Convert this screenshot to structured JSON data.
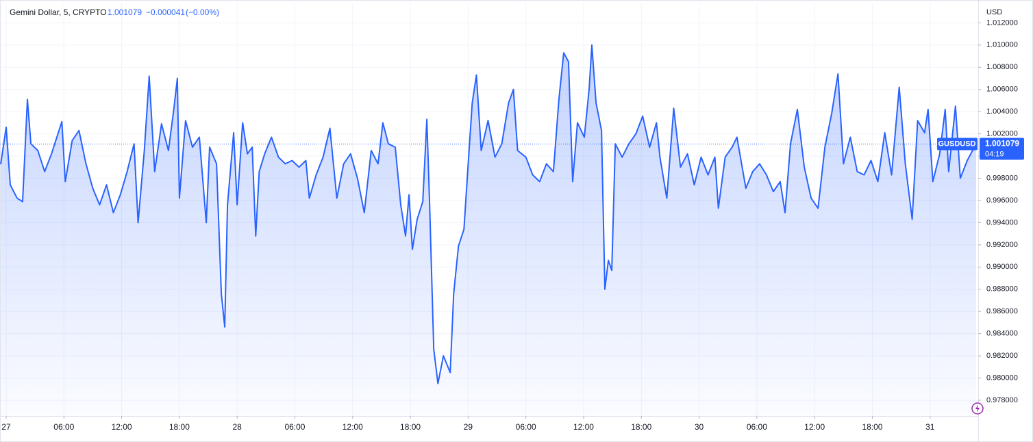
{
  "chart_data": {
    "type": "area",
    "title": "Gemini Dollar, 5, CRYPTO",
    "last_value": 1.001079,
    "change": {
      "value": -4.1e-05,
      "label": "−0.000041"
    },
    "change_percent": {
      "value": 0,
      "label": "(−0.00%)"
    },
    "y_axis_label": "USD",
    "symbol": "GUSDUSD",
    "countdown": "04:19",
    "color": "#2962ff",
    "grid": true,
    "xlim": [
      -0.64,
      101
    ],
    "ylim": [
      0.97658,
      1.01375
    ],
    "xticks": [
      {
        "value": 0,
        "label": "27"
      },
      {
        "value": 6,
        "label": "06:00"
      },
      {
        "value": 12,
        "label": "12:00"
      },
      {
        "value": 18,
        "label": "18:00"
      },
      {
        "value": 24,
        "label": "28"
      },
      {
        "value": 30,
        "label": "06:00"
      },
      {
        "value": 36,
        "label": "12:00"
      },
      {
        "value": 42,
        "label": "18:00"
      },
      {
        "value": 48,
        "label": "29"
      },
      {
        "value": 54,
        "label": "06:00"
      },
      {
        "value": 60,
        "label": "12:00"
      },
      {
        "value": 66,
        "label": "18:00"
      },
      {
        "value": 72,
        "label": "30"
      },
      {
        "value": 78,
        "label": "06:00"
      },
      {
        "value": 84,
        "label": "12:00"
      },
      {
        "value": 90,
        "label": "18:00"
      },
      {
        "value": 96,
        "label": "31"
      }
    ],
    "yticks": [
      {
        "value": 0.978,
        "label": "0.978000"
      },
      {
        "value": 0.98,
        "label": "0.980000"
      },
      {
        "value": 0.982,
        "label": "0.982000"
      },
      {
        "value": 0.984,
        "label": "0.984000"
      },
      {
        "value": 0.986,
        "label": "0.986000"
      },
      {
        "value": 0.988,
        "label": "0.988000"
      },
      {
        "value": 0.99,
        "label": "0.990000"
      },
      {
        "value": 0.992,
        "label": "0.992000"
      },
      {
        "value": 0.994,
        "label": "0.994000"
      },
      {
        "value": 0.996,
        "label": "0.996000"
      },
      {
        "value": 0.998,
        "label": "0.998000"
      },
      {
        "value": 1,
        "label": "1.000000"
      },
      {
        "value": 1.002,
        "label": "1.002000"
      },
      {
        "value": 1.004,
        "label": "1.004000"
      },
      {
        "value": 1.006,
        "label": "1.006000"
      },
      {
        "value": 1.008,
        "label": "1.008000"
      },
      {
        "value": 1.01,
        "label": "1.010000"
      },
      {
        "value": 1.012,
        "label": "1.012000"
      }
    ],
    "x": [
      -0.57,
      0,
      0.43,
      1.14,
      1.71,
      2.21,
      2.57,
      3.29,
      4,
      4.71,
      5.79,
      6.14,
      6.86,
      7.57,
      8.29,
      9,
      9.71,
      10.43,
      11.14,
      11.86,
      12.57,
      13.29,
      13.71,
      14.36,
      14.86,
      15.43,
      16.14,
      16.86,
      17.43,
      17.79,
      18,
      18.64,
      19.36,
      20.07,
      20.79,
      21.14,
      21.86,
      22.36,
      22.71,
      23,
      23.64,
      24,
      24.57,
      25.07,
      25.57,
      25.93,
      26.29,
      26.86,
      27.57,
      28.29,
      29,
      29.71,
      30.43,
      31.14,
      31.5,
      32.21,
      32.93,
      33.64,
      34.36,
      35.07,
      35.79,
      36.5,
      37.21,
      37.93,
      38.64,
      39.14,
      39.71,
      40.43,
      41,
      41.5,
      41.86,
      42.21,
      42.71,
      43.29,
      43.71,
      44,
      44.43,
      44.86,
      45.43,
      46.14,
      46.5,
      47,
      47.57,
      47.93,
      48.43,
      48.86,
      49.36,
      50.07,
      50.79,
      51.5,
      52.21,
      52.71,
      53.14,
      54,
      54.71,
      55.43,
      56.14,
      56.86,
      57.43,
      57.93,
      58.43,
      58.86,
      59.36,
      60.07,
      60.57,
      60.86,
      61.29,
      61.86,
      62.21,
      62.57,
      62.93,
      63.29,
      64,
      64.71,
      65.43,
      66.14,
      66.86,
      67.57,
      67.93,
      68.64,
      69.36,
      70.07,
      70.79,
      71.5,
      72.21,
      72.93,
      73.64,
      74,
      74.71,
      75.43,
      75.93,
      76.86,
      77.57,
      78.29,
      79,
      79.71,
      80.43,
      80.93,
      81.5,
      82.21,
      82.93,
      83.64,
      84.36,
      85.07,
      85.79,
      86.43,
      87,
      87.71,
      88.43,
      89.14,
      89.86,
      90.57,
      91.29,
      92,
      92.79,
      93.43,
      94.14,
      94.71,
      95.43,
      95.79,
      96.29,
      97,
      97.57,
      97.93,
      98.64,
      99.14,
      99.86,
      100.79
    ],
    "values": [
      0.99925,
      1.0026,
      0.9974,
      0.9962,
      0.9959,
      1.0051,
      1.0011,
      1.0005,
      0.9986,
      1.0002,
      1.0031,
      0.9977,
      1.0014,
      1.0023,
      0.9993,
      0.9971,
      0.9956,
      0.9974,
      0.9949,
      0.9965,
      0.9986,
      1.0011,
      0.994,
      1.0005,
      1.0072,
      0.9986,
      1.0029,
      1.0005,
      1.0043,
      1.007,
      0.9962,
      1.0032,
      1.0008,
      1.0017,
      0.994,
      1.0008,
      0.9993,
      0.9876,
      0.9846,
      0.9956,
      1.0021,
      0.9956,
      1.003,
      1.0002,
      1.0008,
      0.9928,
      0.9986,
      1.0002,
      1.0017,
      0.9999,
      0.9993,
      0.9996,
      0.999,
      0.9996,
      0.9962,
      0.9983,
      0.9999,
      1.0025,
      0.9962,
      0.9993,
      1.0002,
      0.998,
      0.9949,
      1.0005,
      0.9993,
      1.003,
      1.0011,
      1.0008,
      0.9956,
      0.9928,
      0.9965,
      0.9916,
      0.9943,
      0.9959,
      1.0033,
      0.9956,
      0.9826,
      0.9795,
      0.982,
      0.9805,
      0.9876,
      0.9919,
      0.9934,
      0.9983,
      1.0048,
      1.0073,
      1.0005,
      1.0032,
      0.9999,
      1.0011,
      1.0048,
      1.006,
      1.0005,
      0.9999,
      0.9983,
      0.9977,
      0.9993,
      0.9986,
      1.0051,
      1.0093,
      1.0085,
      0.9977,
      1.003,
      1.0017,
      1.006,
      1.01,
      1.0048,
      1.0023,
      0.988,
      0.9906,
      0.9897,
      1.0011,
      0.9999,
      1.0011,
      1.002,
      1.0036,
      1.0008,
      1.003,
      0.9999,
      0.9962,
      1.0043,
      0.999,
      1.0002,
      0.9974,
      0.9999,
      0.9983,
      0.9999,
      0.9953,
      0.9999,
      1.0008,
      1.0017,
      0.9971,
      0.9986,
      0.9993,
      0.9983,
      0.9968,
      0.9977,
      0.9949,
      1.0011,
      1.0042,
      0.999,
      0.9962,
      0.9953,
      1.0008,
      1.0039,
      1.0074,
      0.9993,
      1.0017,
      0.9986,
      0.9983,
      0.9996,
      0.9977,
      1.0021,
      0.9983,
      1.0062,
      0.9993,
      0.9943,
      1.0032,
      1.0021,
      1.0042,
      0.9977,
      1.0002,
      1.0042,
      0.9986,
      1.0045,
      0.998,
      0.9996,
      1.0011
    ]
  }
}
